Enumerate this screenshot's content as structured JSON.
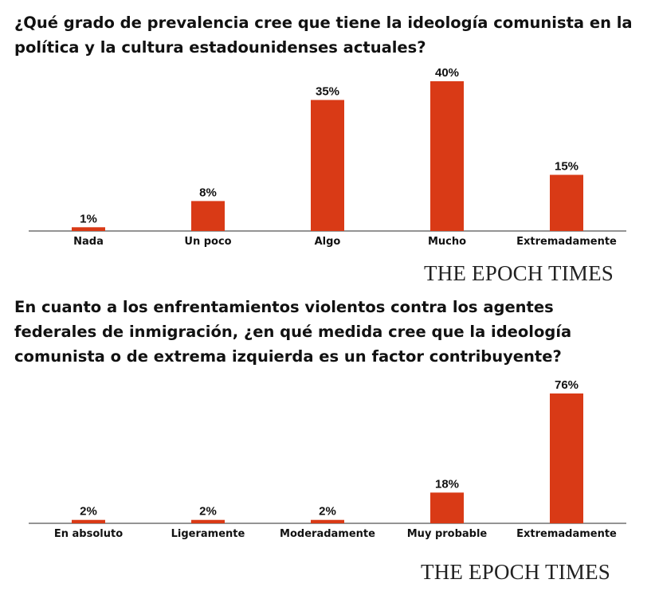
{
  "colors": {
    "bar": "#d93a16",
    "axis": "#555555",
    "text": "#111111"
  },
  "brand_text": "THE EPOCH TIMES",
  "chart_data": [
    {
      "type": "bar",
      "title": "¿Qué grado de prevalencia cree que tiene la ideología comunista en la política y la cultura estadounidenses actuales?",
      "categories": [
        "Nada",
        "Un poco",
        "Algo",
        "Mucho",
        "Extremadamente"
      ],
      "values": [
        1,
        8,
        35,
        40,
        15
      ],
      "value_labels": [
        "1%",
        "8%",
        "35%",
        "40%",
        "15%"
      ],
      "unit": "%",
      "xlabel": "",
      "ylabel": "",
      "ylim": [
        0,
        40
      ],
      "grid": false
    },
    {
      "type": "bar",
      "title": "En cuanto a los enfrentamientos violentos contra los agentes federales de inmigración, ¿en qué medida cree que la ideología comunista o de extrema izquierda es un factor contribuyente?",
      "categories": [
        "En absoluto",
        "Ligeramente",
        "Moderadamente",
        "Muy probable",
        "Extremadamente"
      ],
      "values": [
        2,
        2,
        2,
        18,
        76
      ],
      "value_labels": [
        "2%",
        "2%",
        "2%",
        "18%",
        "76%"
      ],
      "unit": "%",
      "xlabel": "",
      "ylabel": "",
      "ylim": [
        0,
        76
      ],
      "grid": false
    }
  ]
}
